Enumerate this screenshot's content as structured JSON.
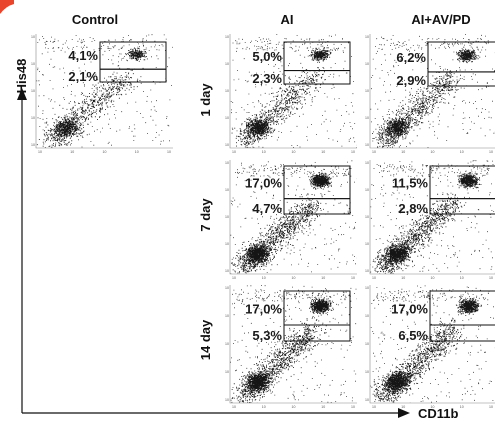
{
  "figure": {
    "columns": [
      {
        "id": "control",
        "title": "Control"
      },
      {
        "id": "ai",
        "title": "AI"
      },
      {
        "id": "ai_av_pd",
        "title": "AI+AV/PD"
      }
    ],
    "rows": [
      {
        "id": "day1",
        "label": "1 day"
      },
      {
        "id": "day7",
        "label": "7 day"
      },
      {
        "id": "day14",
        "label": "14 day"
      }
    ],
    "axes": {
      "x_label": "CD11b",
      "y_label": "His48"
    },
    "panels": [
      {
        "id": "control-day1",
        "column": "control",
        "row": "day1",
        "upper_gate_pct": "4,1%",
        "lower_gate_pct": "2,1%"
      },
      {
        "id": "ai-day1",
        "column": "ai",
        "row": "day1",
        "upper_gate_pct": "5,0%",
        "lower_gate_pct": "2,3%"
      },
      {
        "id": "ai_av_pd-day1",
        "column": "ai_av_pd",
        "row": "day1",
        "upper_gate_pct": "6,2%",
        "lower_gate_pct": "2,9%"
      },
      {
        "id": "ai-day7",
        "column": "ai",
        "row": "day7",
        "upper_gate_pct": "17,0%",
        "lower_gate_pct": "4,7%"
      },
      {
        "id": "ai_av_pd-day7",
        "column": "ai_av_pd",
        "row": "day7",
        "upper_gate_pct": "11,5%",
        "lower_gate_pct": "2,8%"
      },
      {
        "id": "ai-day14",
        "column": "ai",
        "row": "day14",
        "upper_gate_pct": "17,0%",
        "lower_gate_pct": "5,3%"
      },
      {
        "id": "ai_av_pd-day14",
        "column": "ai_av_pd",
        "row": "day14",
        "upper_gate_pct": "17,0%",
        "lower_gate_pct": "6,5%"
      }
    ],
    "tick_labels": [
      "10",
      "10",
      "10",
      "10",
      "10"
    ]
  }
}
